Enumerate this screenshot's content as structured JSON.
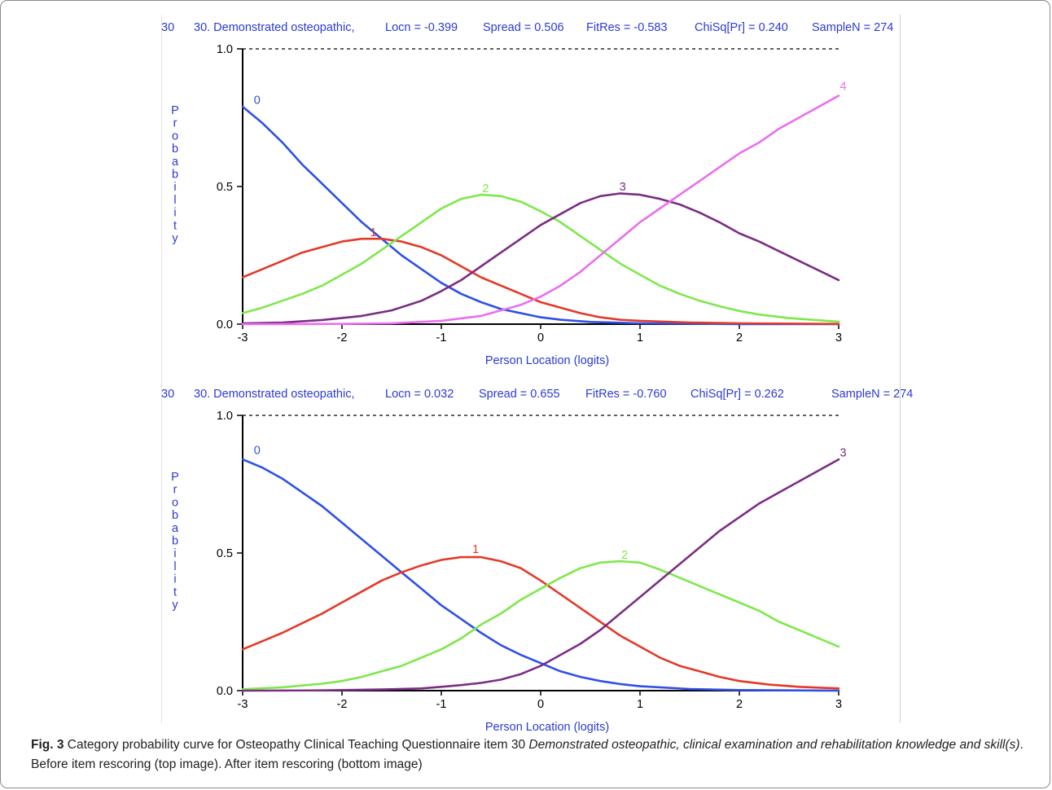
{
  "colors": {
    "blue_text": "#2b3ad6",
    "axis": "#000000",
    "cat0": "#2f50e6",
    "cat1": "#e33a28",
    "cat2": "#7ee84b",
    "cat3": "#7b2d84",
    "cat4": "#ea6ef0"
  },
  "chart_data": [
    {
      "type": "line",
      "header": {
        "item_no": "30",
        "item_name": "30. Demonstrated osteopathic,",
        "locn": "Locn = -0.399",
        "spread": "Spread = 0.506",
        "fitres": "FitRes = -0.583",
        "chisq": "ChiSq[Pr] = 0.240",
        "samplen": "SampleN = 274"
      },
      "ylabel": "Probability",
      "xlabel": "Person Location (logits)",
      "xlim": [
        -3,
        3
      ],
      "ylim": [
        0,
        1
      ],
      "xticks": [
        "-3",
        "-2",
        "-1",
        "0",
        "1",
        "2",
        "3"
      ],
      "yticks": [
        "0.0",
        "0.5",
        "1.0"
      ],
      "top_line_dashed": true,
      "series": [
        {
          "name": "0",
          "color": "#2f50e6",
          "label_at": [
            -2.92,
            0.8
          ],
          "points": [
            [
              -3,
              0.79
            ],
            [
              -2.8,
              0.73
            ],
            [
              -2.6,
              0.66
            ],
            [
              -2.4,
              0.58
            ],
            [
              -2.2,
              0.51
            ],
            [
              -2.0,
              0.44
            ],
            [
              -1.8,
              0.37
            ],
            [
              -1.6,
              0.31
            ],
            [
              -1.4,
              0.25
            ],
            [
              -1.2,
              0.2
            ],
            [
              -1.0,
              0.15
            ],
            [
              -0.8,
              0.11
            ],
            [
              -0.6,
              0.08
            ],
            [
              -0.4,
              0.055
            ],
            [
              -0.2,
              0.04
            ],
            [
              0,
              0.025
            ],
            [
              0.2,
              0.016
            ],
            [
              0.5,
              0.008
            ],
            [
              1.0,
              0.003
            ],
            [
              2.0,
              0.0
            ],
            [
              3.0,
              0.0
            ]
          ]
        },
        {
          "name": "1",
          "color": "#e33a28",
          "label_at": [
            -1.75,
            0.32
          ],
          "points": [
            [
              -3,
              0.17
            ],
            [
              -2.8,
              0.2
            ],
            [
              -2.6,
              0.23
            ],
            [
              -2.4,
              0.26
            ],
            [
              -2.2,
              0.28
            ],
            [
              -2.0,
              0.3
            ],
            [
              -1.8,
              0.31
            ],
            [
              -1.6,
              0.31
            ],
            [
              -1.4,
              0.3
            ],
            [
              -1.2,
              0.28
            ],
            [
              -1.0,
              0.25
            ],
            [
              -0.8,
              0.21
            ],
            [
              -0.6,
              0.17
            ],
            [
              -0.4,
              0.14
            ],
            [
              -0.2,
              0.11
            ],
            [
              0,
              0.08
            ],
            [
              0.2,
              0.06
            ],
            [
              0.4,
              0.04
            ],
            [
              0.6,
              0.025
            ],
            [
              0.8,
              0.016
            ],
            [
              1.0,
              0.012
            ],
            [
              1.5,
              0.006
            ],
            [
              2.0,
              0.003
            ],
            [
              3.0,
              0.001
            ]
          ]
        },
        {
          "name": "2",
          "color": "#7ee84b",
          "label_at": [
            -0.62,
            0.48
          ],
          "points": [
            [
              -3,
              0.04
            ],
            [
              -2.8,
              0.06
            ],
            [
              -2.6,
              0.085
            ],
            [
              -2.4,
              0.11
            ],
            [
              -2.2,
              0.14
            ],
            [
              -2.0,
              0.18
            ],
            [
              -1.8,
              0.22
            ],
            [
              -1.6,
              0.27
            ],
            [
              -1.4,
              0.32
            ],
            [
              -1.2,
              0.37
            ],
            [
              -1.0,
              0.42
            ],
            [
              -0.8,
              0.455
            ],
            [
              -0.6,
              0.47
            ],
            [
              -0.4,
              0.465
            ],
            [
              -0.2,
              0.445
            ],
            [
              0,
              0.41
            ],
            [
              0.2,
              0.37
            ],
            [
              0.4,
              0.32
            ],
            [
              0.6,
              0.27
            ],
            [
              0.8,
              0.22
            ],
            [
              1.0,
              0.18
            ],
            [
              1.2,
              0.14
            ],
            [
              1.4,
              0.11
            ],
            [
              1.6,
              0.085
            ],
            [
              1.8,
              0.065
            ],
            [
              2.0,
              0.048
            ],
            [
              2.2,
              0.035
            ],
            [
              2.5,
              0.022
            ],
            [
              3.0,
              0.009
            ]
          ]
        },
        {
          "name": "3",
          "color": "#7b2d84",
          "label_at": [
            0.76,
            0.485
          ],
          "points": [
            [
              -3,
              0.003
            ],
            [
              -2.6,
              0.006
            ],
            [
              -2.2,
              0.015
            ],
            [
              -1.8,
              0.03
            ],
            [
              -1.5,
              0.05
            ],
            [
              -1.2,
              0.085
            ],
            [
              -1.0,
              0.12
            ],
            [
              -0.8,
              0.16
            ],
            [
              -0.6,
              0.21
            ],
            [
              -0.4,
              0.26
            ],
            [
              -0.2,
              0.31
            ],
            [
              0,
              0.36
            ],
            [
              0.2,
              0.4
            ],
            [
              0.4,
              0.44
            ],
            [
              0.6,
              0.465
            ],
            [
              0.8,
              0.475
            ],
            [
              1.0,
              0.47
            ],
            [
              1.2,
              0.455
            ],
            [
              1.4,
              0.435
            ],
            [
              1.6,
              0.405
            ],
            [
              1.8,
              0.37
            ],
            [
              2.0,
              0.33
            ],
            [
              2.2,
              0.3
            ],
            [
              2.4,
              0.265
            ],
            [
              2.6,
              0.23
            ],
            [
              2.8,
              0.195
            ],
            [
              3.0,
              0.16
            ]
          ]
        },
        {
          "name": "4",
          "color": "#ea6ef0",
          "label_at": [
            2.98,
            0.85
          ],
          "points": [
            [
              -3,
              0.0
            ],
            [
              -2.0,
              0.001
            ],
            [
              -1.5,
              0.003
            ],
            [
              -1.0,
              0.012
            ],
            [
              -0.6,
              0.03
            ],
            [
              -0.4,
              0.05
            ],
            [
              -0.2,
              0.07
            ],
            [
              0,
              0.1
            ],
            [
              0.2,
              0.14
            ],
            [
              0.4,
              0.19
            ],
            [
              0.6,
              0.25
            ],
            [
              0.8,
              0.31
            ],
            [
              1.0,
              0.37
            ],
            [
              1.2,
              0.42
            ],
            [
              1.4,
              0.47
            ],
            [
              1.6,
              0.52
            ],
            [
              1.8,
              0.57
            ],
            [
              2.0,
              0.62
            ],
            [
              2.2,
              0.66
            ],
            [
              2.4,
              0.71
            ],
            [
              2.6,
              0.75
            ],
            [
              2.8,
              0.79
            ],
            [
              3.0,
              0.83
            ]
          ]
        }
      ]
    },
    {
      "type": "line",
      "header": {
        "item_no": "30",
        "item_name": "30. Demonstrated osteopathic,",
        "locn": "Locn = 0.032",
        "spread": "Spread = 0.655",
        "fitres": "FitRes = -0.760",
        "chisq": "ChiSq[Pr] = 0.262",
        "samplen": "SampleN = 274"
      },
      "ylabel": "Probability",
      "xlabel": "Person Location (logits)",
      "xlim": [
        -3,
        3
      ],
      "ylim": [
        0,
        1
      ],
      "xticks": [
        "-3",
        "-2",
        "-1",
        "0",
        "1",
        "2",
        "3"
      ],
      "yticks": [
        "0.0",
        "0.5",
        "1.0"
      ],
      "top_line_dashed": true,
      "series": [
        {
          "name": "0",
          "color": "#2f50e6",
          "label_at": [
            -2.92,
            0.86
          ],
          "points": [
            [
              -3,
              0.84
            ],
            [
              -2.8,
              0.81
            ],
            [
              -2.6,
              0.77
            ],
            [
              -2.4,
              0.72
            ],
            [
              -2.2,
              0.67
            ],
            [
              -2.0,
              0.61
            ],
            [
              -1.8,
              0.55
            ],
            [
              -1.6,
              0.49
            ],
            [
              -1.4,
              0.43
            ],
            [
              -1.2,
              0.37
            ],
            [
              -1.0,
              0.31
            ],
            [
              -0.8,
              0.26
            ],
            [
              -0.6,
              0.21
            ],
            [
              -0.4,
              0.165
            ],
            [
              -0.2,
              0.13
            ],
            [
              0,
              0.1
            ],
            [
              0.2,
              0.07
            ],
            [
              0.4,
              0.05
            ],
            [
              0.6,
              0.035
            ],
            [
              0.8,
              0.024
            ],
            [
              1.0,
              0.016
            ],
            [
              1.5,
              0.006
            ],
            [
              2.0,
              0.002
            ],
            [
              3.0,
              0.0
            ]
          ]
        },
        {
          "name": "1",
          "color": "#e33a28",
          "label_at": [
            -0.72,
            0.5
          ],
          "points": [
            [
              -3,
              0.15
            ],
            [
              -2.8,
              0.18
            ],
            [
              -2.6,
              0.21
            ],
            [
              -2.4,
              0.245
            ],
            [
              -2.2,
              0.28
            ],
            [
              -2.0,
              0.32
            ],
            [
              -1.8,
              0.36
            ],
            [
              -1.6,
              0.4
            ],
            [
              -1.4,
              0.43
            ],
            [
              -1.2,
              0.455
            ],
            [
              -1.0,
              0.475
            ],
            [
              -0.8,
              0.485
            ],
            [
              -0.6,
              0.485
            ],
            [
              -0.4,
              0.47
            ],
            [
              -0.2,
              0.445
            ],
            [
              0,
              0.4
            ],
            [
              0.2,
              0.35
            ],
            [
              0.4,
              0.3
            ],
            [
              0.6,
              0.25
            ],
            [
              0.8,
              0.2
            ],
            [
              1.0,
              0.16
            ],
            [
              1.2,
              0.12
            ],
            [
              1.4,
              0.09
            ],
            [
              1.6,
              0.07
            ],
            [
              1.8,
              0.05
            ],
            [
              2.0,
              0.035
            ],
            [
              2.3,
              0.022
            ],
            [
              2.6,
              0.014
            ],
            [
              3.0,
              0.008
            ]
          ]
        },
        {
          "name": "2",
          "color": "#7ee84b",
          "label_at": [
            0.78,
            0.48
          ],
          "points": [
            [
              -3,
              0.005
            ],
            [
              -2.6,
              0.012
            ],
            [
              -2.2,
              0.025
            ],
            [
              -2.0,
              0.035
            ],
            [
              -1.8,
              0.05
            ],
            [
              -1.6,
              0.07
            ],
            [
              -1.4,
              0.09
            ],
            [
              -1.2,
              0.12
            ],
            [
              -1.0,
              0.15
            ],
            [
              -0.8,
              0.19
            ],
            [
              -0.6,
              0.24
            ],
            [
              -0.4,
              0.28
            ],
            [
              -0.2,
              0.33
            ],
            [
              0,
              0.37
            ],
            [
              0.2,
              0.41
            ],
            [
              0.4,
              0.445
            ],
            [
              0.6,
              0.465
            ],
            [
              0.8,
              0.47
            ],
            [
              1.0,
              0.465
            ],
            [
              1.2,
              0.44
            ],
            [
              1.4,
              0.41
            ],
            [
              1.6,
              0.38
            ],
            [
              1.8,
              0.35
            ],
            [
              2.0,
              0.32
            ],
            [
              2.2,
              0.29
            ],
            [
              2.4,
              0.25
            ],
            [
              2.6,
              0.22
            ],
            [
              2.8,
              0.19
            ],
            [
              3.0,
              0.16
            ]
          ]
        },
        {
          "name": "3",
          "color": "#7b2d84",
          "label_at": [
            2.98,
            0.85
          ],
          "points": [
            [
              -3,
              0.0
            ],
            [
              -2.2,
              0.001
            ],
            [
              -1.6,
              0.004
            ],
            [
              -1.2,
              0.008
            ],
            [
              -1.0,
              0.014
            ],
            [
              -0.8,
              0.02
            ],
            [
              -0.6,
              0.028
            ],
            [
              -0.4,
              0.04
            ],
            [
              -0.2,
              0.06
            ],
            [
              0,
              0.09
            ],
            [
              0.2,
              0.13
            ],
            [
              0.4,
              0.17
            ],
            [
              0.6,
              0.22
            ],
            [
              0.8,
              0.28
            ],
            [
              1.0,
              0.34
            ],
            [
              1.2,
              0.4
            ],
            [
              1.4,
              0.46
            ],
            [
              1.6,
              0.52
            ],
            [
              1.8,
              0.58
            ],
            [
              2.0,
              0.63
            ],
            [
              2.2,
              0.68
            ],
            [
              2.4,
              0.72
            ],
            [
              2.6,
              0.76
            ],
            [
              2.8,
              0.8
            ],
            [
              3.0,
              0.84
            ]
          ]
        }
      ]
    }
  ],
  "caption": {
    "fig_label": "Fig. 3",
    "text_a": " Category probability curve for Osteopathy Clinical Teaching Questionnaire item 30 ",
    "italic": "Demonstrated osteopathic, clinical examination and rehabilitation knowledge and skill(s)",
    "text_b": ". Before item rescoring (top image). After item rescoring (bottom image)"
  }
}
